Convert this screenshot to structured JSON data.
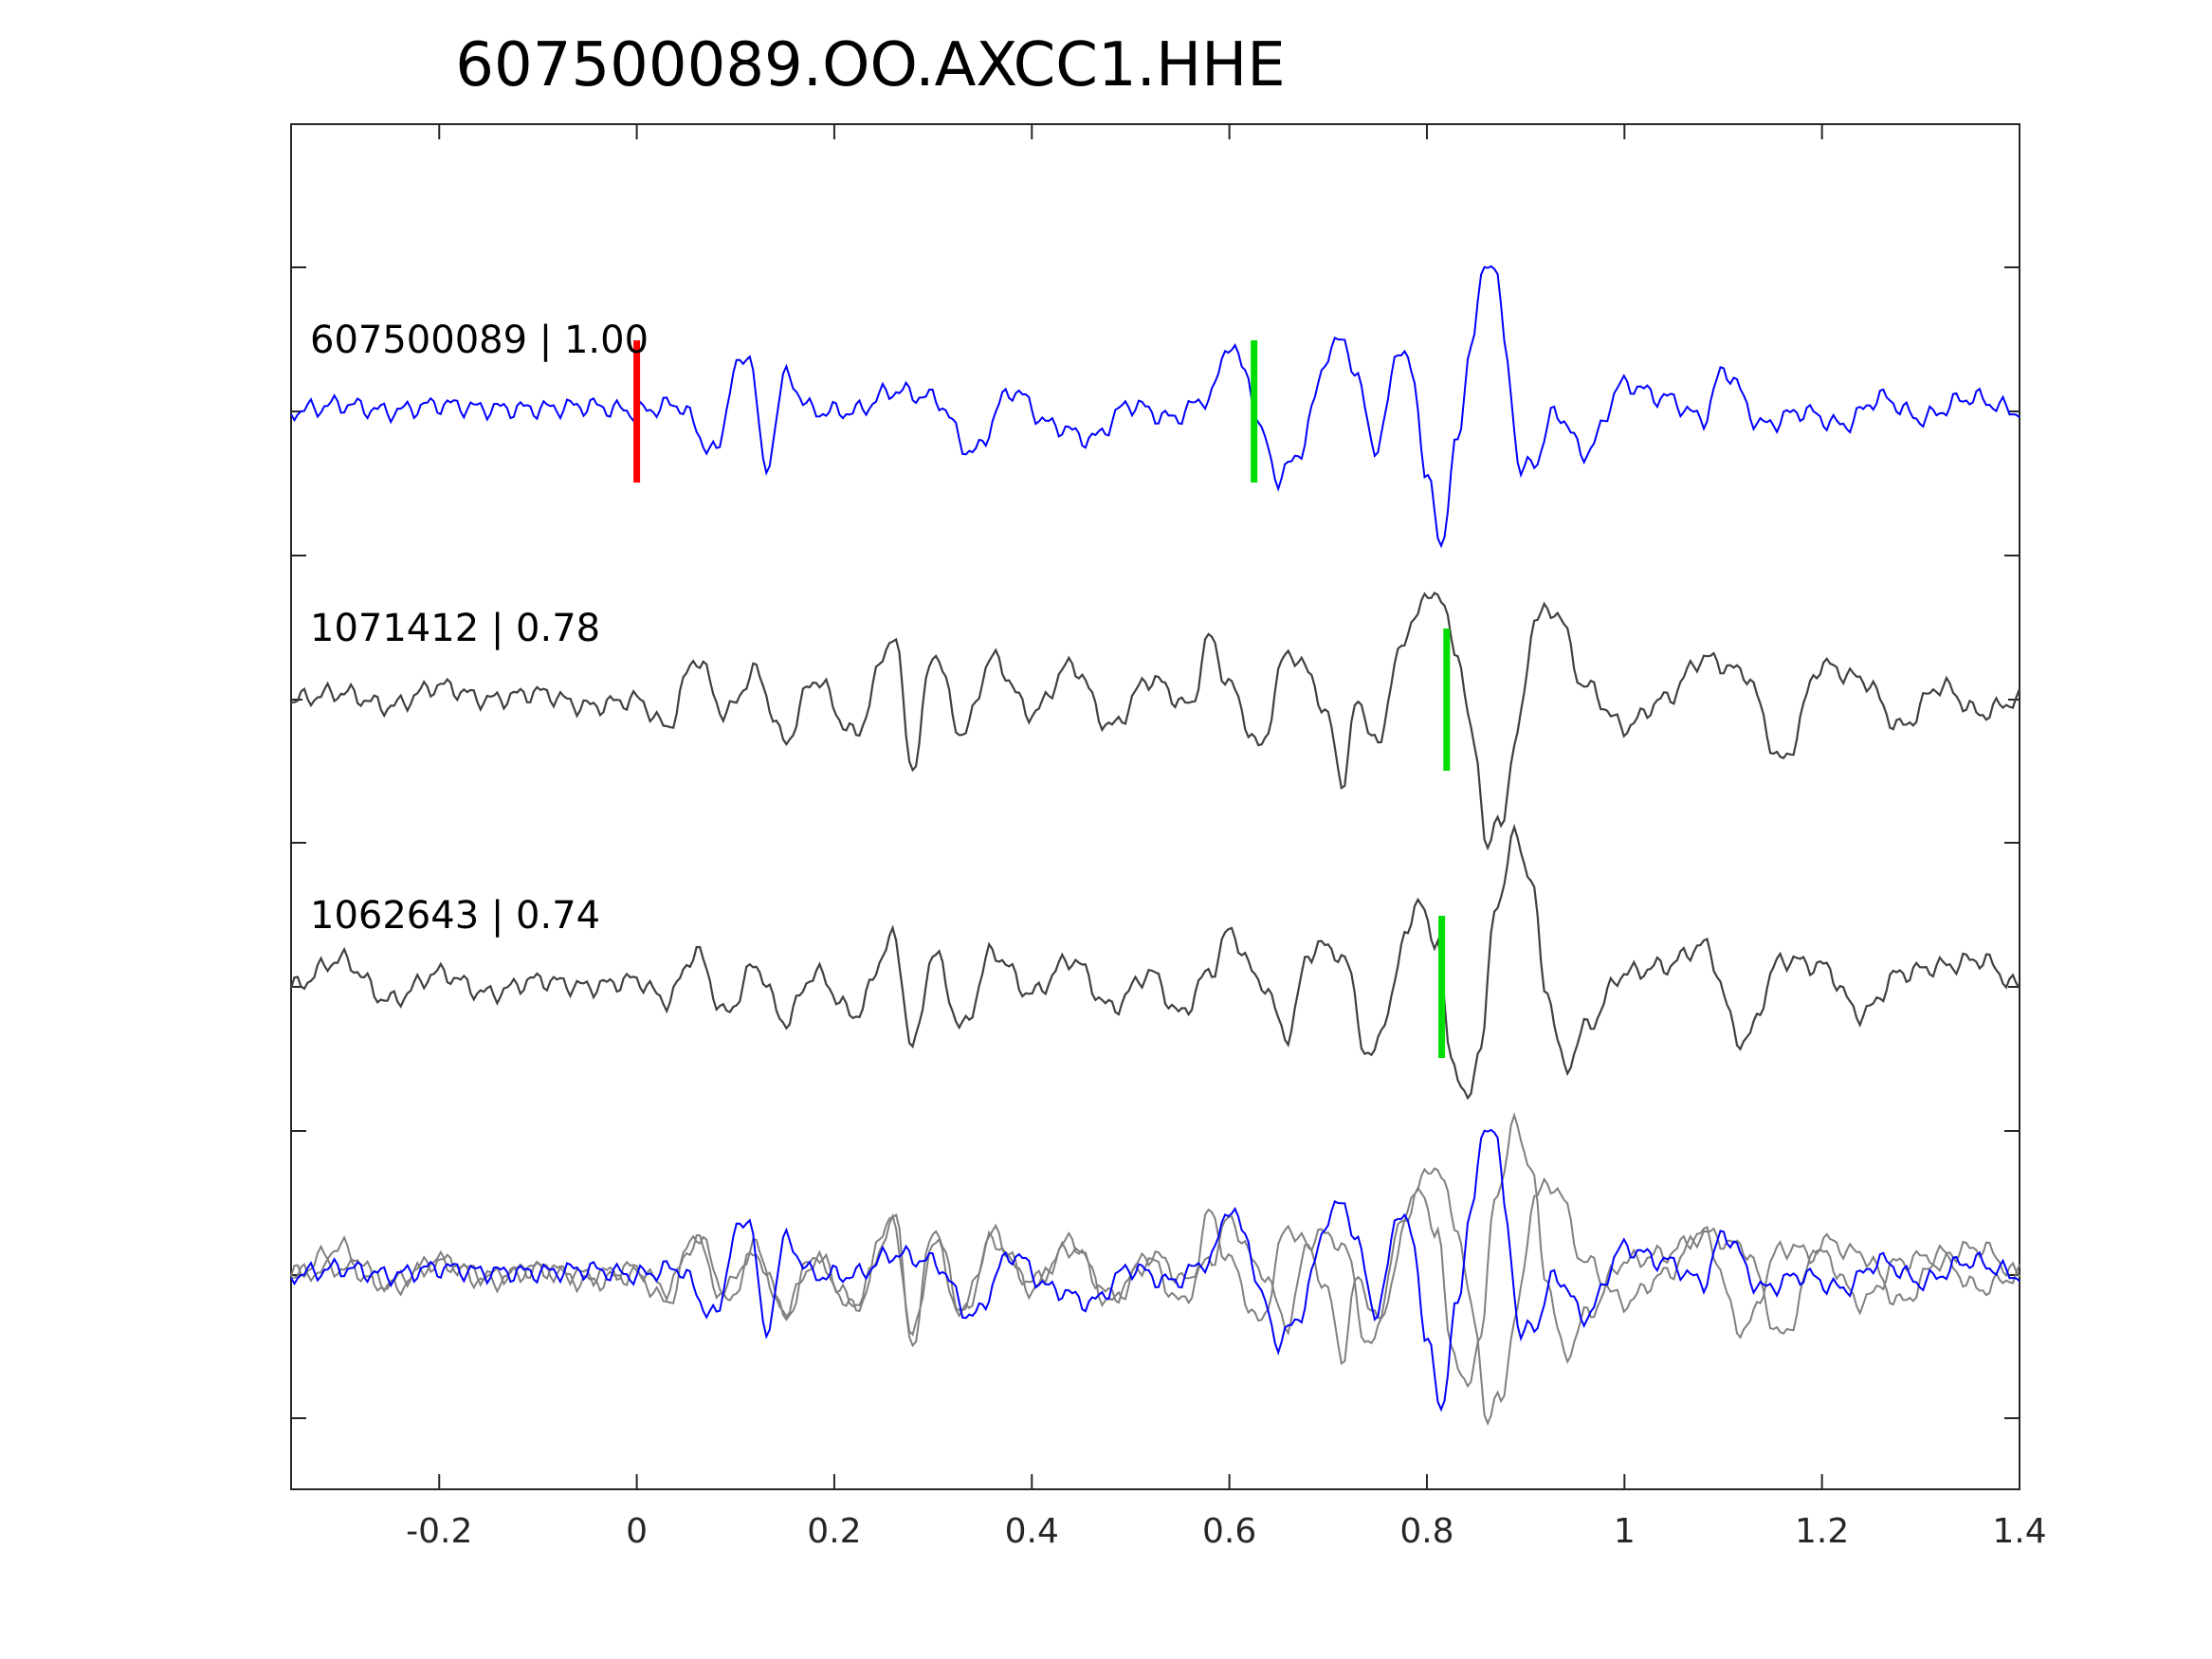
{
  "chart_data": {
    "type": "line",
    "title": "607500089.OO.AXCC1.HHE",
    "xlabel": "",
    "ylabel": "",
    "xlim": [
      -0.35,
      1.4
    ],
    "xticks": [
      -0.2,
      0,
      0.2,
      0.4,
      0.6,
      0.8,
      1,
      1.2,
      1.4
    ],
    "xtick_labels": [
      "-0.2",
      "0",
      "0.2",
      "0.4",
      "0.6",
      "0.8",
      "1",
      "1.2",
      "1.4"
    ],
    "grid": false,
    "legend": "none",
    "panels": [
      {
        "label": "607500089 | 1.00",
        "color": "#0000ff",
        "markers": [
          {
            "x": 0.0,
            "color": "#ff0000"
          },
          {
            "x": 0.625,
            "color": "#00dd00"
          }
        ]
      },
      {
        "label": "1071412 | 0.78",
        "color": "#404040",
        "markers": [
          {
            "x": 0.82,
            "color": "#00dd00"
          }
        ]
      },
      {
        "label": "1062643 | 0.74",
        "color": "#404040",
        "markers": [
          {
            "x": 0.815,
            "color": "#00dd00"
          }
        ]
      },
      {
        "label": "",
        "overlay": true
      }
    ],
    "series": [
      {
        "key": "607500089",
        "color": "#0000ff",
        "x": [
          -0.35,
          -0.3,
          -0.25,
          -0.2,
          -0.15,
          -0.1,
          -0.05,
          0.0,
          0.04,
          0.08,
          0.1,
          0.115,
          0.13,
          0.15,
          0.18,
          0.22,
          0.26,
          0.3,
          0.34,
          0.38,
          0.42,
          0.46,
          0.5,
          0.54,
          0.58,
          0.6,
          0.615,
          0.635,
          0.65,
          0.67,
          0.7,
          0.715,
          0.73,
          0.75,
          0.77,
          0.785,
          0.8,
          0.815,
          0.83,
          0.845,
          0.86,
          0.87,
          0.88,
          0.895,
          0.91,
          0.93,
          0.96,
          1.0,
          1.04,
          1.08,
          1.1,
          1.14,
          1.18,
          1.22,
          1.26,
          1.3,
          1.35,
          1.4
        ],
        "y": [
          0.0,
          0.05,
          0.0,
          0.05,
          0.02,
          0.02,
          0.04,
          0.0,
          0.05,
          -0.3,
          0.3,
          0.42,
          -0.45,
          0.25,
          0.0,
          0.0,
          0.15,
          0.1,
          -0.3,
          0.15,
          -0.1,
          -0.2,
          0.05,
          -0.05,
          0.1,
          0.5,
          0.3,
          -0.2,
          -0.5,
          -0.3,
          0.4,
          0.55,
          0.2,
          -0.3,
          0.45,
          0.3,
          -0.5,
          -0.95,
          -0.25,
          0.5,
          1.1,
          1.05,
          0.4,
          -0.45,
          -0.35,
          0.0,
          -0.3,
          0.2,
          0.1,
          -0.05,
          0.3,
          -0.1,
          0.0,
          -0.1,
          0.1,
          -0.05,
          0.1,
          0.0
        ]
      },
      {
        "key": "1071412",
        "color": "#404040",
        "x": [
          -0.35,
          -0.3,
          -0.25,
          -0.2,
          -0.15,
          -0.1,
          -0.05,
          0.0,
          0.03,
          0.06,
          0.09,
          0.12,
          0.15,
          0.18,
          0.22,
          0.26,
          0.28,
          0.3,
          0.33,
          0.36,
          0.4,
          0.44,
          0.48,
          0.52,
          0.56,
          0.58,
          0.6,
          0.63,
          0.66,
          0.68,
          0.7,
          0.715,
          0.73,
          0.75,
          0.77,
          0.79,
          0.81,
          0.83,
          0.85,
          0.86,
          0.875,
          0.89,
          0.91,
          0.93,
          0.96,
          1.0,
          1.04,
          1.08,
          1.12,
          1.16,
          1.2,
          1.24,
          1.28,
          1.32,
          1.36,
          1.4
        ],
        "y": [
          0.0,
          0.05,
          -0.05,
          0.1,
          0.0,
          0.05,
          -0.05,
          0.0,
          -0.2,
          0.3,
          -0.1,
          0.2,
          -0.3,
          0.15,
          -0.25,
          0.45,
          -0.5,
          0.35,
          -0.25,
          0.3,
          -0.1,
          0.25,
          -0.2,
          0.15,
          -0.05,
          0.45,
          0.1,
          -0.35,
          0.35,
          0.2,
          -0.15,
          -0.6,
          0.0,
          -0.35,
          0.3,
          0.65,
          0.8,
          0.35,
          -0.4,
          -1.05,
          -0.9,
          -0.3,
          0.6,
          0.65,
          0.1,
          -0.2,
          0.0,
          0.3,
          0.2,
          -0.45,
          0.25,
          0.15,
          -0.2,
          0.1,
          -0.1,
          0.0
        ]
      },
      {
        "key": "1062643",
        "color": "#404040",
        "x": [
          -0.35,
          -0.3,
          -0.25,
          -0.2,
          -0.15,
          -0.1,
          -0.05,
          0.0,
          0.03,
          0.06,
          0.09,
          0.12,
          0.15,
          0.18,
          0.22,
          0.26,
          0.28,
          0.3,
          0.33,
          0.36,
          0.4,
          0.44,
          0.48,
          0.52,
          0.55,
          0.58,
          0.6,
          0.63,
          0.66,
          0.68,
          0.7,
          0.72,
          0.74,
          0.76,
          0.78,
          0.795,
          0.81,
          0.825,
          0.84,
          0.855,
          0.87,
          0.89,
          0.905,
          0.92,
          0.94,
          0.96,
          1.0,
          1.04,
          1.08,
          1.12,
          1.16,
          1.2,
          1.24,
          1.28,
          1.32,
          1.36,
          1.4
        ],
        "y": [
          0.0,
          0.2,
          -0.1,
          0.1,
          -0.05,
          0.05,
          0.0,
          0.05,
          -0.1,
          0.25,
          -0.2,
          0.15,
          -0.25,
          0.1,
          -0.2,
          0.35,
          -0.45,
          0.25,
          -0.3,
          0.25,
          -0.05,
          0.2,
          -0.15,
          0.1,
          -0.2,
          0.1,
          0.4,
          0.05,
          -0.35,
          0.25,
          0.3,
          0.15,
          -0.55,
          -0.2,
          0.45,
          0.6,
          0.3,
          -0.5,
          -0.85,
          -0.4,
          0.6,
          1.1,
          0.8,
          0.0,
          -0.6,
          -0.3,
          0.1,
          0.15,
          0.3,
          -0.4,
          0.2,
          0.15,
          -0.2,
          0.1,
          0.15,
          0.2,
          0.0
        ]
      }
    ]
  }
}
